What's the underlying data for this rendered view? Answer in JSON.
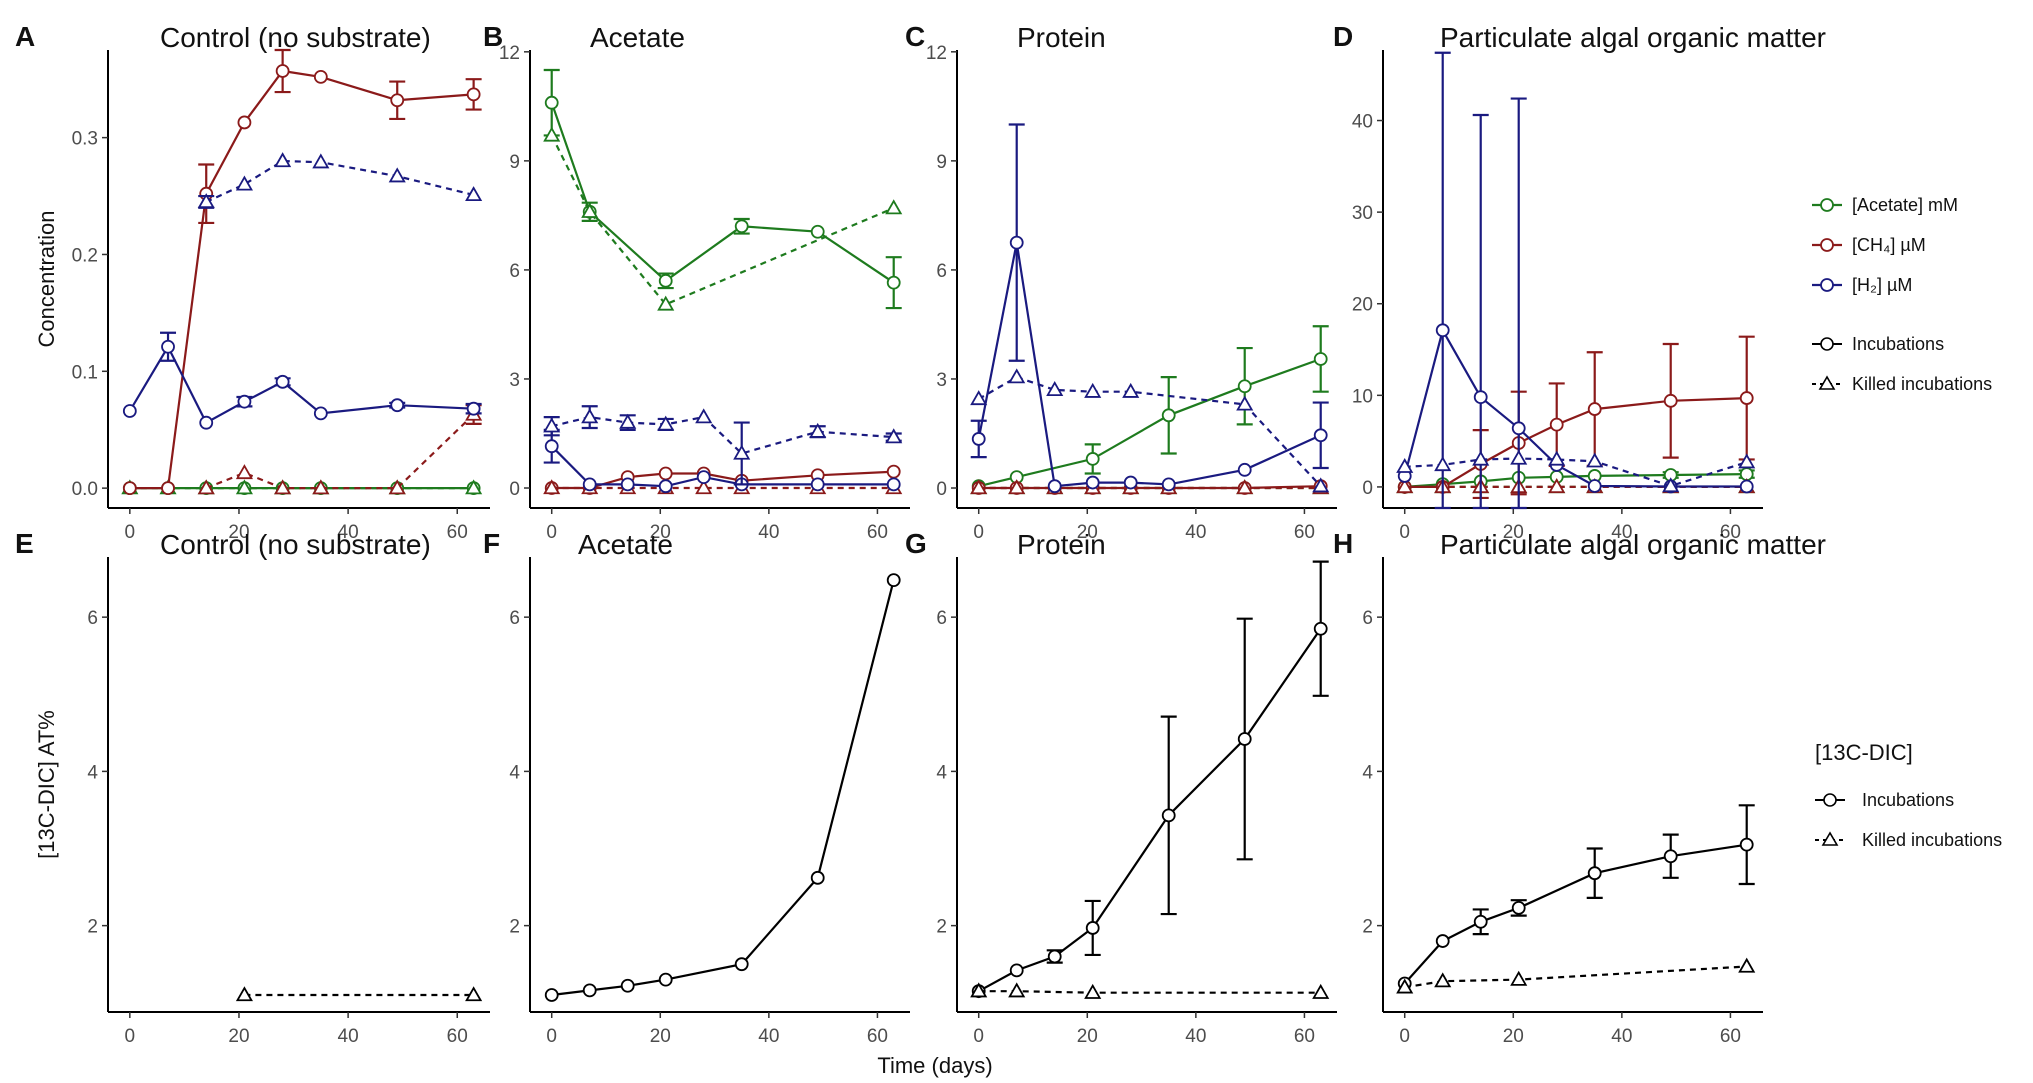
{
  "figure": {
    "x_label": "Time (days)",
    "colors": {
      "acetate": "#1e7b1e",
      "ch4": "#8b1a1a",
      "h2": "#1a1a80",
      "dic": "#000000"
    }
  },
  "legend_top": {
    "entries": [
      {
        "label": "[Acetate] mM",
        "series": "acetate"
      },
      {
        "label": "[CH₄] µM",
        "series": "ch4"
      },
      {
        "label": "[H₂] µM",
        "series": "h2"
      }
    ],
    "type_entries": [
      {
        "label": "Incubations",
        "kind": "live"
      },
      {
        "label": "Killed incubations",
        "kind": "killed"
      }
    ]
  },
  "legend_bottom": {
    "title": "[13C-DIC]",
    "entries": [
      {
        "label": "Incubations",
        "kind": "live"
      },
      {
        "label": "Killed incubations",
        "kind": "killed"
      }
    ]
  },
  "chart_data": [
    {
      "panel": "A",
      "type": "line",
      "title": "Control (no substrate)",
      "ylabel": "Concentration",
      "xlabel": "Time (days)",
      "xlim": [
        -4,
        66
      ],
      "ylim": [
        -0.017,
        0.375
      ],
      "xticks": [
        0,
        20,
        40,
        60
      ],
      "yticks": [
        0.0,
        0.1,
        0.2,
        0.3
      ],
      "ytick_labels": [
        "0.0",
        "0.1",
        "0.2",
        "0.3"
      ],
      "series": [
        {
          "name": "[Acetate] mM",
          "color": "acetate",
          "kind": "live",
          "x": [
            0,
            7,
            14,
            21,
            28,
            35,
            49,
            63
          ],
          "y": [
            0,
            0,
            0,
            0,
            0,
            0,
            0,
            0
          ]
        },
        {
          "name": "[Acetate] mM",
          "color": "acetate",
          "kind": "killed",
          "x": [
            0,
            7,
            14,
            21,
            28,
            35,
            49,
            63
          ],
          "y": [
            0,
            0,
            0,
            0,
            0,
            0,
            0,
            0
          ]
        },
        {
          "name": "[CH4] µM",
          "color": "ch4",
          "kind": "live",
          "x": [
            0,
            7,
            14,
            21,
            28,
            35,
            49,
            63
          ],
          "y": [
            0,
            0,
            0.252,
            0.313,
            0.357,
            0.352,
            0.332,
            0.337
          ],
          "err": [
            0,
            0,
            0.025,
            0,
            0.018,
            0,
            0.016,
            0.013
          ]
        },
        {
          "name": "[CH4] µM",
          "color": "ch4",
          "kind": "killed",
          "x": [
            14,
            21,
            28,
            35,
            49,
            63
          ],
          "y": [
            0,
            0.013,
            0,
            0,
            0,
            0.063
          ],
          "err": [
            0,
            0,
            0,
            0,
            0,
            0.008
          ]
        },
        {
          "name": "[H2] µM",
          "color": "h2",
          "kind": "live",
          "x": [
            0,
            7,
            14,
            21,
            28,
            35,
            49,
            63
          ],
          "y": [
            0.066,
            0.121,
            0.056,
            0.074,
            0.091,
            0.064,
            0.071,
            0.068
          ],
          "err": [
            0,
            0.012,
            0,
            0.004,
            0.003,
            0,
            0.002,
            0.004
          ]
        },
        {
          "name": "[H2] µM",
          "color": "h2",
          "kind": "killed",
          "x": [
            14,
            21,
            28,
            35,
            49,
            63
          ],
          "y": [
            0.245,
            0.26,
            0.28,
            0.279,
            0.267,
            0.251
          ],
          "err": [
            0.005,
            0,
            0,
            0,
            0,
            0
          ]
        }
      ]
    },
    {
      "panel": "B",
      "type": "line",
      "title": "Acetate",
      "xlim": [
        -4,
        66
      ],
      "ylim": [
        -0.55,
        12.05
      ],
      "xticks": [
        0,
        20,
        40,
        60
      ],
      "yticks": [
        0,
        3,
        6,
        9,
        12
      ],
      "ytick_labels": [
        "0",
        "3",
        "6",
        "9",
        "12"
      ],
      "series": [
        {
          "name": "[Acetate] mM",
          "color": "acetate",
          "kind": "live",
          "x": [
            0,
            7,
            21,
            35,
            49,
            63
          ],
          "y": [
            10.6,
            7.6,
            5.7,
            7.2,
            7.05,
            5.65
          ],
          "err": [
            0.9,
            0.25,
            0.2,
            0.2,
            0,
            0.7
          ]
        },
        {
          "name": "[Acetate] mM",
          "color": "acetate",
          "kind": "killed",
          "x": [
            0,
            7,
            21,
            63
          ],
          "y": [
            9.7,
            7.6,
            5.05,
            7.7
          ]
        },
        {
          "name": "[CH4] µM",
          "color": "ch4",
          "kind": "live",
          "x": [
            0,
            7,
            14,
            21,
            28,
            35,
            49,
            63
          ],
          "y": [
            0,
            0,
            0.3,
            0.4,
            0.4,
            0.2,
            0.35,
            0.45
          ]
        },
        {
          "name": "[CH4] µM",
          "color": "ch4",
          "kind": "killed",
          "x": [
            0,
            7,
            14,
            21,
            28,
            35,
            49,
            63
          ],
          "y": [
            0,
            0,
            0,
            0,
            0,
            0,
            0,
            0
          ]
        },
        {
          "name": "[H2] µM",
          "color": "h2",
          "kind": "live",
          "x": [
            0,
            7,
            14,
            21,
            28,
            35,
            49,
            63
          ],
          "y": [
            1.15,
            0.1,
            0.1,
            0.05,
            0.3,
            0.1,
            0.1,
            0.1
          ],
          "err": [
            0.45,
            0,
            0,
            0,
            0,
            0,
            0,
            0
          ]
        },
        {
          "name": "[H2] µM",
          "color": "h2",
          "kind": "killed",
          "x": [
            0,
            7,
            14,
            21,
            28,
            35,
            49,
            63
          ],
          "y": [
            1.7,
            1.95,
            1.8,
            1.75,
            1.95,
            0.95,
            1.55,
            1.4
          ],
          "err": [
            0.25,
            0.3,
            0.2,
            0.15,
            0,
            0.85,
            0.15,
            0.1
          ]
        }
      ]
    },
    {
      "panel": "C",
      "type": "line",
      "title": "Protein",
      "xlim": [
        -4,
        66
      ],
      "ylim": [
        -0.55,
        12.05
      ],
      "xticks": [
        0,
        20,
        40,
        60
      ],
      "yticks": [
        0,
        3,
        6,
        9,
        12
      ],
      "ytick_labels": [
        "0",
        "3",
        "6",
        "9",
        "12"
      ],
      "series": [
        {
          "name": "[Acetate] mM",
          "color": "acetate",
          "kind": "live",
          "x": [
            0,
            7,
            21,
            35,
            49,
            63
          ],
          "y": [
            0.05,
            0.3,
            0.8,
            2.0,
            2.8,
            3.55
          ],
          "err": [
            0,
            0,
            0.4,
            1.05,
            1.05,
            0.9
          ]
        },
        {
          "name": "[Acetate] mM",
          "color": "acetate",
          "kind": "killed",
          "x": [
            0,
            7,
            14,
            21,
            28,
            35,
            49,
            63
          ],
          "y": [
            0,
            0,
            0,
            0,
            0,
            0,
            0,
            0
          ]
        },
        {
          "name": "[CH4] µM",
          "color": "ch4",
          "kind": "live",
          "x": [
            0,
            7,
            14,
            21,
            28,
            35,
            49,
            63
          ],
          "y": [
            0,
            0,
            0,
            0,
            0,
            0,
            0,
            0.05
          ]
        },
        {
          "name": "[CH4] µM",
          "color": "ch4",
          "kind": "killed",
          "x": [
            0,
            7,
            14,
            21,
            28,
            35,
            49,
            63
          ],
          "y": [
            0,
            0,
            0,
            0,
            0,
            0,
            0,
            0
          ]
        },
        {
          "name": "[H2] µM",
          "color": "h2",
          "kind": "live",
          "x": [
            0,
            7,
            14,
            21,
            28,
            35,
            49,
            63
          ],
          "y": [
            1.35,
            6.75,
            0.05,
            0.15,
            0.15,
            0.1,
            0.5,
            1.45
          ],
          "err": [
            0.5,
            3.25,
            0,
            0,
            0,
            0,
            0,
            0.9
          ]
        },
        {
          "name": "[H2] µM",
          "color": "h2",
          "kind": "killed",
          "x": [
            0,
            7,
            14,
            21,
            28,
            49,
            63
          ],
          "y": [
            2.45,
            3.05,
            2.7,
            2.65,
            2.65,
            2.3,
            0.05
          ]
        }
      ]
    },
    {
      "panel": "D",
      "type": "line",
      "title": "Particulate algal organic matter",
      "xlim": [
        -4,
        66
      ],
      "ylim": [
        -2.3,
        47.7
      ],
      "xticks": [
        0,
        20,
        40,
        60
      ],
      "yticks": [
        0,
        10,
        20,
        30,
        40
      ],
      "ytick_labels": [
        "0",
        "10",
        "20",
        "30",
        "40"
      ],
      "series": [
        {
          "name": "[Acetate] mM",
          "color": "acetate",
          "kind": "live",
          "x": [
            0,
            7,
            14,
            21,
            28,
            35,
            49,
            63
          ],
          "y": [
            0,
            0.3,
            0.6,
            1.0,
            1.1,
            1.2,
            1.3,
            1.4
          ],
          "err": [
            0,
            0,
            0,
            0,
            0,
            0,
            0.3,
            0.4
          ]
        },
        {
          "name": "[Acetate] mM",
          "color": "acetate",
          "kind": "killed",
          "x": [
            0,
            7,
            14,
            21,
            28,
            35,
            49,
            63
          ],
          "y": [
            0,
            0,
            0,
            0,
            0,
            0,
            0,
            0
          ]
        },
        {
          "name": "[CH4] µM",
          "color": "ch4",
          "kind": "live",
          "x": [
            0,
            7,
            14,
            21,
            28,
            35,
            49,
            63
          ],
          "y": [
            0,
            0,
            2.5,
            4.8,
            6.8,
            8.5,
            9.4,
            9.7
          ],
          "err": [
            0,
            0,
            3.7,
            5.6,
            4.5,
            6.2,
            6.2,
            6.7
          ]
        },
        {
          "name": "[CH4] µM",
          "color": "ch4",
          "kind": "killed",
          "x": [
            0,
            7,
            14,
            21,
            28,
            35,
            49,
            63
          ],
          "y": [
            0,
            0,
            0,
            0,
            0,
            0,
            0,
            0
          ]
        },
        {
          "name": "[H2] µM",
          "color": "h2",
          "kind": "live",
          "x": [
            0,
            7,
            14,
            21,
            28,
            35,
            49,
            63
          ],
          "y": [
            1.2,
            17.1,
            9.8,
            6.4,
            2.4,
            0.1,
            0.05,
            0.05
          ],
          "err": [
            0,
            30.3,
            30.8,
            36.0,
            0,
            0,
            0,
            0
          ]
        },
        {
          "name": "[H2] µM",
          "color": "h2",
          "kind": "killed",
          "x": [
            0,
            7,
            14,
            21,
            28,
            35,
            49,
            63
          ],
          "y": [
            2.2,
            2.4,
            3.0,
            3.1,
            3.0,
            2.8,
            0.1,
            2.7
          ]
        }
      ]
    },
    {
      "panel": "E",
      "type": "line",
      "title": "Control (no substrate)",
      "ylabel": "[13C-DIC] AT%",
      "xlim": [
        -4,
        66
      ],
      "ylim": [
        0.88,
        6.78
      ],
      "xticks": [
        0,
        20,
        40,
        60
      ],
      "yticks": [
        2,
        4,
        6
      ],
      "ytick_labels": [
        "2",
        "4",
        "6"
      ],
      "series": [
        {
          "name": "[13C-DIC]",
          "color": "dic",
          "kind": "killed",
          "x": [
            21,
            63
          ],
          "y": [
            1.1,
            1.1
          ]
        }
      ]
    },
    {
      "panel": "F",
      "type": "line",
      "title": "Acetate",
      "xlim": [
        -4,
        66
      ],
      "ylim": [
        0.88,
        6.78
      ],
      "xticks": [
        0,
        20,
        40,
        60
      ],
      "yticks": [
        2,
        4,
        6
      ],
      "ytick_labels": [
        "2",
        "4",
        "6"
      ],
      "series": [
        {
          "name": "[13C-DIC]",
          "color": "dic",
          "kind": "live",
          "x": [
            0,
            7,
            14,
            21,
            35,
            49,
            63
          ],
          "y": [
            1.1,
            1.16,
            1.22,
            1.3,
            1.5,
            2.62,
            6.48
          ]
        }
      ]
    },
    {
      "panel": "G",
      "type": "line",
      "title": "Protein",
      "xlim": [
        -4,
        66
      ],
      "ylim": [
        0.88,
        6.78
      ],
      "xticks": [
        0,
        20,
        40,
        60
      ],
      "yticks": [
        2,
        4,
        6
      ],
      "ytick_labels": [
        "2",
        "4",
        "6"
      ],
      "series": [
        {
          "name": "[13C-DIC]",
          "color": "dic",
          "kind": "live",
          "x": [
            0,
            7,
            14,
            21,
            35,
            49,
            63
          ],
          "y": [
            1.15,
            1.42,
            1.6,
            1.97,
            3.43,
            4.42,
            5.85
          ],
          "err": [
            0,
            0,
            0.08,
            0.35,
            1.28,
            1.56,
            0.87
          ]
        },
        {
          "name": "[13C-DIC]",
          "color": "dic",
          "kind": "killed",
          "x": [
            0,
            7,
            21,
            63
          ],
          "y": [
            1.15,
            1.15,
            1.13,
            1.13
          ]
        }
      ]
    },
    {
      "panel": "H",
      "type": "line",
      "title": "Particulate algal organic matter",
      "xlim": [
        -4,
        66
      ],
      "ylim": [
        0.88,
        6.78
      ],
      "xticks": [
        0,
        20,
        40,
        60
      ],
      "yticks": [
        2,
        4,
        6
      ],
      "ytick_labels": [
        "2",
        "4",
        "6"
      ],
      "series": [
        {
          "name": "[13C-DIC]",
          "color": "dic",
          "kind": "live",
          "x": [
            0,
            7,
            14,
            21,
            35,
            49,
            63
          ],
          "y": [
            1.25,
            1.8,
            2.05,
            2.23,
            2.68,
            2.9,
            3.05
          ],
          "err": [
            0,
            0,
            0.16,
            0.1,
            0.32,
            0.28,
            0.51
          ]
        },
        {
          "name": "[13C-DIC]",
          "color": "dic",
          "kind": "killed",
          "x": [
            0,
            7,
            21,
            63
          ],
          "y": [
            1.2,
            1.28,
            1.3,
            1.47
          ]
        }
      ]
    }
  ]
}
